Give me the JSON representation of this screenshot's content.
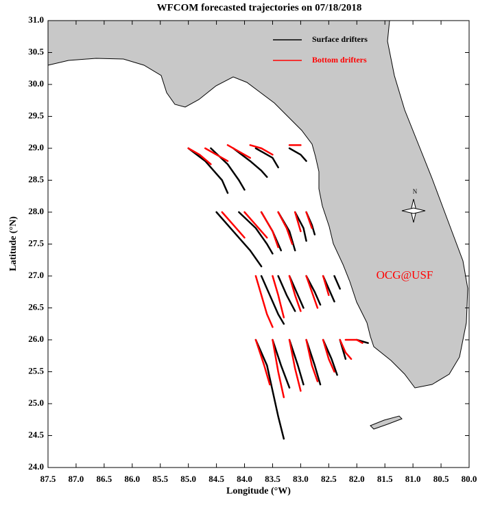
{
  "chart_data": {
    "type": "trajectory",
    "title": "WFCOM forecasted trajectories on 07/18/2018",
    "x_label": "Longitude (°W)",
    "y_label": "Latitude (°N)",
    "annotation": "OCG@USF",
    "compass_label": "N",
    "xlim": [
      87.5,
      80.0
    ],
    "ylim": [
      24.0,
      31.0
    ],
    "xticks": [
      87.5,
      {
        "value": 87,
        "label": "87.0"
      },
      86.5,
      {
        "value": 86,
        "label": "86.0"
      },
      85.5,
      {
        "value": 85,
        "label": "85.0"
      },
      84.5,
      {
        "value": 84,
        "label": "84.0"
      },
      83.5,
      {
        "value": 83,
        "label": "83.0"
      },
      82.5,
      {
        "value": 82,
        "label": "82.0"
      },
      81.5,
      {
        "value": 81,
        "label": "81.0"
      },
      80.5,
      {
        "value": 80,
        "label": "80.0"
      }
    ],
    "yticks": [
      {
        "value": 24,
        "label": "24.0"
      },
      24.5,
      {
        "value": 25,
        "label": "25.0"
      },
      25.5,
      {
        "value": 26,
        "label": "26.0"
      },
      26.5,
      {
        "value": 27,
        "label": "27.0"
      },
      27.5,
      {
        "value": 28,
        "label": "28.0"
      },
      28.5,
      {
        "value": 29,
        "label": "29.0"
      },
      29.5,
      {
        "value": 30,
        "label": "30.0"
      },
      30.5,
      {
        "value": 31,
        "label": "31.0"
      }
    ],
    "series": [
      {
        "name": "Surface drifters",
        "color": "#000000",
        "trajectories": [
          {
            "x": [
              85.0,
              84.7,
              84.4,
              84.3
            ],
            "y": [
              29.0,
              28.8,
              28.5,
              28.3
            ]
          },
          {
            "x": [
              84.6,
              84.3,
              84.1,
              84.0
            ],
            "y": [
              29.0,
              28.75,
              28.5,
              28.35
            ]
          },
          {
            "x": [
              84.2,
              83.9,
              83.7,
              83.6
            ],
            "y": [
              29.0,
              28.8,
              28.65,
              28.55
            ]
          },
          {
            "x": [
              83.8,
              83.5,
              83.4
            ],
            "y": [
              29.0,
              28.85,
              28.7
            ]
          },
          {
            "x": [
              83.2,
              83.0,
              82.9
            ],
            "y": [
              29.0,
              28.9,
              28.8
            ]
          },
          {
            "x": [
              84.5,
              84.2,
              83.9,
              83.7
            ],
            "y": [
              28.0,
              27.7,
              27.4,
              27.15
            ]
          },
          {
            "x": [
              84.1,
              83.8,
              83.6,
              83.5
            ],
            "y": [
              28.0,
              27.75,
              27.5,
              27.35
            ]
          },
          {
            "x": [
              83.7,
              83.5,
              83.35
            ],
            "y": [
              28.0,
              27.7,
              27.4
            ]
          },
          {
            "x": [
              83.4,
              83.2,
              83.1
            ],
            "y": [
              28.0,
              27.7,
              27.4
            ]
          },
          {
            "x": [
              83.1,
              82.95,
              82.9
            ],
            "y": [
              28.0,
              27.75,
              27.55
            ]
          },
          {
            "x": [
              82.9,
              82.8,
              82.75
            ],
            "y": [
              28.0,
              27.8,
              27.65
            ]
          },
          {
            "x": [
              83.7,
              83.55,
              83.4,
              83.3
            ],
            "y": [
              27.0,
              26.7,
              26.4,
              26.25
            ]
          },
          {
            "x": [
              83.4,
              83.25,
              83.1
            ],
            "y": [
              27.0,
              26.7,
              26.45
            ]
          },
          {
            "x": [
              83.2,
              83.05,
              82.95
            ],
            "y": [
              27.0,
              26.7,
              26.5
            ]
          },
          {
            "x": [
              82.9,
              82.75,
              82.65
            ],
            "y": [
              27.0,
              26.75,
              26.55
            ]
          },
          {
            "x": [
              82.6,
              82.5,
              82.4
            ],
            "y": [
              27.0,
              26.8,
              26.6
            ]
          },
          {
            "x": [
              82.4,
              82.3
            ],
            "y": [
              27.0,
              26.8
            ]
          },
          {
            "x": [
              83.8,
              83.6,
              83.5,
              83.4,
              83.3
            ],
            "y": [
              26.0,
              25.6,
              25.2,
              24.8,
              24.45
            ]
          },
          {
            "x": [
              83.5,
              83.35,
              83.2
            ],
            "y": [
              26.0,
              25.6,
              25.25
            ]
          },
          {
            "x": [
              83.2,
              83.05,
              82.95
            ],
            "y": [
              26.0,
              25.6,
              25.3
            ]
          },
          {
            "x": [
              82.9,
              82.75,
              82.65
            ],
            "y": [
              26.0,
              25.6,
              25.3
            ]
          },
          {
            "x": [
              82.6,
              82.45,
              82.35
            ],
            "y": [
              26.0,
              25.7,
              25.45
            ]
          },
          {
            "x": [
              82.3,
              82.2
            ],
            "y": [
              26.0,
              25.7
            ]
          },
          {
            "x": [
              82.0,
              81.8
            ],
            "y": [
              26.0,
              25.95
            ]
          }
        ]
      },
      {
        "name": "Bottom drifters",
        "color": "#ff0000",
        "trajectories": [
          {
            "x": [
              85.0,
              84.8,
              84.6
            ],
            "y": [
              29.0,
              28.9,
              28.75
            ]
          },
          {
            "x": [
              84.7,
              84.5,
              84.3
            ],
            "y": [
              29.0,
              28.9,
              28.8
            ]
          },
          {
            "x": [
              84.3,
              84.1,
              83.9
            ],
            "y": [
              29.05,
              28.95,
              28.85
            ]
          },
          {
            "x": [
              83.9,
              83.7,
              83.5
            ],
            "y": [
              29.05,
              29.0,
              28.9
            ]
          },
          {
            "x": [
              83.2,
              83.0
            ],
            "y": [
              29.05,
              29.05
            ]
          },
          {
            "x": [
              84.4,
              84.2,
              84.0
            ],
            "y": [
              28.0,
              27.8,
              27.6
            ]
          },
          {
            "x": [
              84.0,
              83.8,
              83.6
            ],
            "y": [
              28.0,
              27.8,
              27.6
            ]
          },
          {
            "x": [
              83.7,
              83.5,
              83.4
            ],
            "y": [
              28.0,
              27.7,
              27.45
            ]
          },
          {
            "x": [
              83.4,
              83.25,
              83.15
            ],
            "y": [
              28.0,
              27.75,
              27.5
            ]
          },
          {
            "x": [
              83.1,
              83.0
            ],
            "y": [
              28.0,
              27.7
            ]
          },
          {
            "x": [
              82.9,
              82.8
            ],
            "y": [
              28.0,
              27.75
            ]
          },
          {
            "x": [
              83.8,
              83.7,
              83.6,
              83.5
            ],
            "y": [
              27.0,
              26.7,
              26.4,
              26.2
            ]
          },
          {
            "x": [
              83.5,
              83.4,
              83.3
            ],
            "y": [
              27.0,
              26.7,
              26.35
            ]
          },
          {
            "x": [
              83.2,
              83.1,
              83.0
            ],
            "y": [
              27.0,
              26.7,
              26.45
            ]
          },
          {
            "x": [
              82.9,
              82.8,
              82.7
            ],
            "y": [
              27.0,
              26.75,
              26.5
            ]
          },
          {
            "x": [
              82.6,
              82.5
            ],
            "y": [
              27.0,
              26.7
            ]
          },
          {
            "x": [
              83.8,
              83.65,
              83.55
            ],
            "y": [
              26.0,
              25.6,
              25.3
            ]
          },
          {
            "x": [
              83.5,
              83.4,
              83.3
            ],
            "y": [
              26.0,
              25.5,
              25.1
            ]
          },
          {
            "x": [
              83.2,
              83.1,
              83.0
            ],
            "y": [
              26.0,
              25.55,
              25.2
            ]
          },
          {
            "x": [
              82.9,
              82.8,
              82.7
            ],
            "y": [
              26.0,
              25.6,
              25.35
            ]
          },
          {
            "x": [
              82.6,
              82.5,
              82.4
            ],
            "y": [
              26.0,
              25.7,
              25.5
            ]
          },
          {
            "x": [
              82.3,
              82.2,
              82.1
            ],
            "y": [
              26.0,
              25.8,
              25.7
            ]
          },
          {
            "x": [
              82.2,
              82.0,
              81.9
            ],
            "y": [
              26.0,
              26.0,
              25.95
            ]
          }
        ]
      }
    ]
  }
}
